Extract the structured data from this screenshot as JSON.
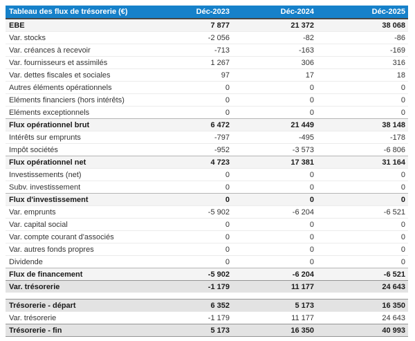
{
  "colors": {
    "header_bg": "#1681ca",
    "header_text": "#ffffff",
    "subtotal_row_bg": "#f4f4f4",
    "total_row_bg": "#e3e3e3",
    "header_bottom_border": "#454545",
    "body_text": "#333333"
  },
  "table": {
    "header": {
      "label": "Tableau des flux de trésorerie (€)",
      "columns": [
        "Déc-2023",
        "Déc-2024",
        "Déc-2025"
      ]
    },
    "rows": [
      {
        "label": "EBE",
        "values": [
          "7 877",
          "21 372",
          "38 068"
        ],
        "style": "subtotal"
      },
      {
        "label": "Var. stocks",
        "values": [
          "-2 056",
          "-82",
          "-86"
        ],
        "style": "normal"
      },
      {
        "label": "Var. créances à recevoir",
        "values": [
          "-713",
          "-163",
          "-169"
        ],
        "style": "normal"
      },
      {
        "label": "Var. fournisseurs et assimilés",
        "values": [
          "1 267",
          "306",
          "316"
        ],
        "style": "normal"
      },
      {
        "label": "Var. dettes fiscales et sociales",
        "values": [
          "97",
          "17",
          "18"
        ],
        "style": "normal"
      },
      {
        "label": "Autres éléments opérationnels",
        "values": [
          "0",
          "0",
          "0"
        ],
        "style": "normal"
      },
      {
        "label": "Eléments financiers (hors intérêts)",
        "values": [
          "0",
          "0",
          "0"
        ],
        "style": "normal"
      },
      {
        "label": "Eléments exceptionnels",
        "values": [
          "0",
          "0",
          "0"
        ],
        "style": "normal"
      },
      {
        "label": "Flux opérationnel brut",
        "values": [
          "6 472",
          "21 449",
          "38 148"
        ],
        "style": "subtotal"
      },
      {
        "label": "Intérêts sur emprunts",
        "values": [
          "-797",
          "-495",
          "-178"
        ],
        "style": "normal"
      },
      {
        "label": "Impôt sociétés",
        "values": [
          "-952",
          "-3 573",
          "-6 806"
        ],
        "style": "normal"
      },
      {
        "label": "Flux opérationnel net",
        "values": [
          "4 723",
          "17 381",
          "31 164"
        ],
        "style": "subtotal"
      },
      {
        "label": "Investissements (net)",
        "values": [
          "0",
          "0",
          "0"
        ],
        "style": "normal"
      },
      {
        "label": "Subv. investissement",
        "values": [
          "0",
          "0",
          "0"
        ],
        "style": "normal"
      },
      {
        "label": "Flux d'investissement",
        "values": [
          "0",
          "0",
          "0"
        ],
        "style": "subtotal"
      },
      {
        "label": "Var. emprunts",
        "values": [
          "-5 902",
          "-6 204",
          "-6 521"
        ],
        "style": "normal"
      },
      {
        "label": "Var. capital social",
        "values": [
          "0",
          "0",
          "0"
        ],
        "style": "normal"
      },
      {
        "label": "Var. compte courant d'associés",
        "values": [
          "0",
          "0",
          "0"
        ],
        "style": "normal"
      },
      {
        "label": "Var. autres fonds propres",
        "values": [
          "0",
          "0",
          "0"
        ],
        "style": "normal"
      },
      {
        "label": "Dividende",
        "values": [
          "0",
          "0",
          "0"
        ],
        "style": "normal"
      },
      {
        "label": "Flux de financement",
        "values": [
          "-5 902",
          "-6 204",
          "-6 521"
        ],
        "style": "subtotal"
      },
      {
        "label": "Var. trésorerie",
        "values": [
          "-1 179",
          "11 177",
          "24 643"
        ],
        "style": "total"
      },
      {
        "label": "",
        "values": [
          "",
          "",
          ""
        ],
        "style": "spacer"
      },
      {
        "label": "Trésorerie - départ",
        "values": [
          "6 352",
          "5 173",
          "16 350"
        ],
        "style": "total"
      },
      {
        "label": "Var. trésorerie",
        "values": [
          "-1 179",
          "11 177",
          "24 643"
        ],
        "style": "normal"
      },
      {
        "label": "Trésorerie - fin",
        "values": [
          "5 173",
          "16 350",
          "40 993"
        ],
        "style": "total"
      }
    ]
  },
  "chart_data": {
    "type": "table",
    "title": "Tableau des flux de trésorerie (€)",
    "columns": [
      "Déc-2023",
      "Déc-2024",
      "Déc-2025"
    ],
    "rows": [
      [
        "EBE",
        7877,
        21372,
        38068
      ],
      [
        "Var. stocks",
        -2056,
        -82,
        -86
      ],
      [
        "Var. créances à recevoir",
        -713,
        -163,
        -169
      ],
      [
        "Var. fournisseurs et assimilés",
        1267,
        306,
        316
      ],
      [
        "Var. dettes fiscales et sociales",
        97,
        17,
        18
      ],
      [
        "Autres éléments opérationnels",
        0,
        0,
        0
      ],
      [
        "Eléments financiers (hors intérêts)",
        0,
        0,
        0
      ],
      [
        "Eléments exceptionnels",
        0,
        0,
        0
      ],
      [
        "Flux opérationnel brut",
        6472,
        21449,
        38148
      ],
      [
        "Intérêts sur emprunts",
        -797,
        -495,
        -178
      ],
      [
        "Impôt sociétés",
        -952,
        -3573,
        -6806
      ],
      [
        "Flux opérationnel net",
        4723,
        17381,
        31164
      ],
      [
        "Investissements (net)",
        0,
        0,
        0
      ],
      [
        "Subv. investissement",
        0,
        0,
        0
      ],
      [
        "Flux d'investissement",
        0,
        0,
        0
      ],
      [
        "Var. emprunts",
        -5902,
        -6204,
        -6521
      ],
      [
        "Var. capital social",
        0,
        0,
        0
      ],
      [
        "Var. compte courant d'associés",
        0,
        0,
        0
      ],
      [
        "Var. autres fonds propres",
        0,
        0,
        0
      ],
      [
        "Dividende",
        0,
        0,
        0
      ],
      [
        "Flux de financement",
        -5902,
        -6204,
        -6521
      ],
      [
        "Var. trésorerie",
        -1179,
        11177,
        24643
      ],
      [
        "Trésorerie - départ",
        6352,
        5173,
        16350
      ],
      [
        "Var. trésorerie",
        -1179,
        11177,
        24643
      ],
      [
        "Trésorerie - fin",
        5173,
        16350,
        40993
      ]
    ]
  }
}
